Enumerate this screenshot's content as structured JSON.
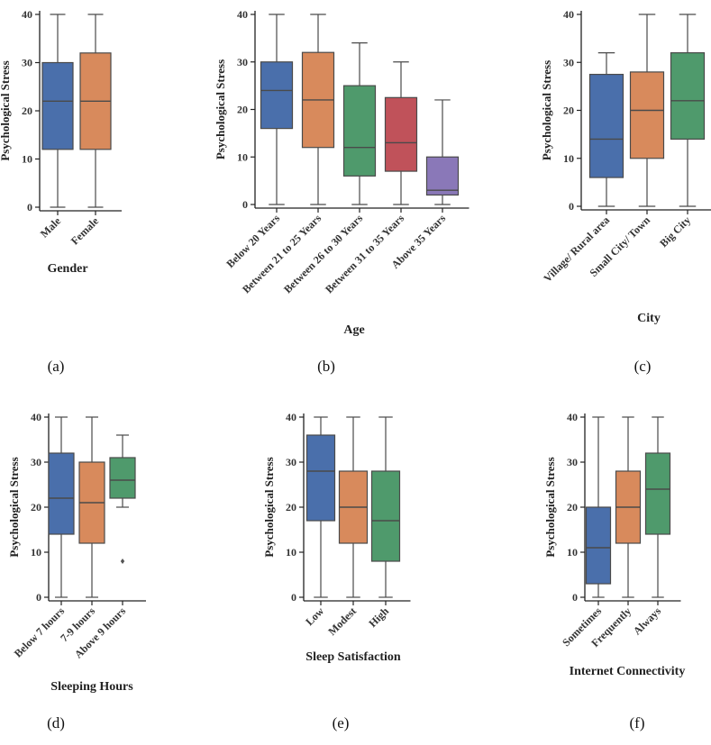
{
  "figure_labels": [
    "(a)",
    "(b)",
    "(c)",
    "(d)",
    "(e)",
    "(f)"
  ],
  "colors": {
    "blue": "#4a6fab",
    "orange": "#d88a5c",
    "green": "#4f9a6c",
    "red": "#c0525a",
    "purple": "#8a78b8",
    "line": "#4a4a4a",
    "axis": "#222222"
  },
  "chart_data": [
    {
      "type": "box",
      "title": "",
      "xlabel": "Gender",
      "ylabel": "Psychological Stress",
      "ylim": [
        0,
        40
      ],
      "yticks": [
        "0",
        "10",
        "20",
        "30",
        "40"
      ],
      "categories": [
        "Male",
        "Female"
      ],
      "boxes": [
        {
          "min": 0,
          "q1": 12,
          "median": 22,
          "q3": 30,
          "max": 40,
          "color": "#4a6fab",
          "outliers": []
        },
        {
          "min": 0,
          "q1": 12,
          "median": 22,
          "q3": 32,
          "max": 40,
          "color": "#d88a5c",
          "outliers": []
        }
      ]
    },
    {
      "type": "box",
      "title": "",
      "xlabel": "Age",
      "ylabel": "Psychological Stress",
      "ylim": [
        0,
        40
      ],
      "yticks": [
        "0",
        "10",
        "20",
        "30",
        "40"
      ],
      "categories": [
        "Below 20 Years",
        "Between 21 to 25 Years",
        "Between 26 to 30 Years",
        "Between 31 to 35 Years",
        "Above 35 Years"
      ],
      "boxes": [
        {
          "min": 0,
          "q1": 16,
          "median": 24,
          "q3": 30,
          "max": 40,
          "color": "#4a6fab",
          "outliers": []
        },
        {
          "min": 0,
          "q1": 12,
          "median": 22,
          "q3": 32,
          "max": 40,
          "color": "#d88a5c",
          "outliers": []
        },
        {
          "min": 0,
          "q1": 6,
          "median": 12,
          "q3": 25,
          "max": 34,
          "color": "#4f9a6c",
          "outliers": []
        },
        {
          "min": 0,
          "q1": 7,
          "median": 13,
          "q3": 22.5,
          "max": 30,
          "color": "#c0525a",
          "outliers": []
        },
        {
          "min": 0,
          "q1": 2,
          "median": 3,
          "q3": 10,
          "max": 22,
          "color": "#8a78b8",
          "outliers": []
        }
      ]
    },
    {
      "type": "box",
      "title": "",
      "xlabel": "City",
      "ylabel": "Psychological Stress",
      "ylim": [
        0,
        40
      ],
      "yticks": [
        "0",
        "10",
        "20",
        "30",
        "40"
      ],
      "categories": [
        "Village/ Rural area",
        "Small City/ Town",
        "Big City"
      ],
      "boxes": [
        {
          "min": 0,
          "q1": 6,
          "median": 14,
          "q3": 27.5,
          "max": 32,
          "color": "#4a6fab",
          "outliers": []
        },
        {
          "min": 0,
          "q1": 10,
          "median": 20,
          "q3": 28,
          "max": 40,
          "color": "#d88a5c",
          "outliers": []
        },
        {
          "min": 0,
          "q1": 14,
          "median": 22,
          "q3": 32,
          "max": 40,
          "color": "#4f9a6c",
          "outliers": []
        }
      ]
    },
    {
      "type": "box",
      "title": "",
      "xlabel": "Sleeping Hours",
      "ylabel": "Psychological Stress",
      "ylim": [
        0,
        40
      ],
      "yticks": [
        "0",
        "10",
        "20",
        "30",
        "40"
      ],
      "categories": [
        "Below 7 hours",
        "7-9 hours",
        "Above 9 hours"
      ],
      "boxes": [
        {
          "min": 0,
          "q1": 14,
          "median": 22,
          "q3": 32,
          "max": 40,
          "color": "#4a6fab",
          "outliers": []
        },
        {
          "min": 0,
          "q1": 12,
          "median": 21,
          "q3": 30,
          "max": 40,
          "color": "#d88a5c",
          "outliers": []
        },
        {
          "min": 20,
          "q1": 22,
          "median": 26,
          "q3": 31,
          "max": 36,
          "color": "#4f9a6c",
          "outliers": [
            8
          ]
        }
      ]
    },
    {
      "type": "box",
      "title": "",
      "xlabel": "Sleep Satisfaction",
      "ylabel": "Psychological Stress",
      "ylim": [
        0,
        40
      ],
      "yticks": [
        "0",
        "10",
        "20",
        "30",
        "40"
      ],
      "categories": [
        "Low",
        "Modest",
        "High"
      ],
      "boxes": [
        {
          "min": 0,
          "q1": 17,
          "median": 28,
          "q3": 36,
          "max": 40,
          "color": "#4a6fab",
          "outliers": []
        },
        {
          "min": 0,
          "q1": 12,
          "median": 20,
          "q3": 28,
          "max": 40,
          "color": "#d88a5c",
          "outliers": []
        },
        {
          "min": 0,
          "q1": 8,
          "median": 17,
          "q3": 28,
          "max": 40,
          "color": "#4f9a6c",
          "outliers": []
        }
      ]
    },
    {
      "type": "box",
      "title": "",
      "xlabel": "Internet Connectivity",
      "ylabel": "Psychological Stress",
      "ylim": [
        0,
        40
      ],
      "yticks": [
        "0",
        "10",
        "20",
        "30",
        "40"
      ],
      "categories": [
        "Sometimes",
        "Frequently",
        "Always"
      ],
      "boxes": [
        {
          "min": 0,
          "q1": 3,
          "median": 11,
          "q3": 20,
          "max": 40,
          "color": "#4a6fab",
          "outliers": []
        },
        {
          "min": 0,
          "q1": 12,
          "median": 20,
          "q3": 28,
          "max": 40,
          "color": "#d88a5c",
          "outliers": []
        },
        {
          "min": 0,
          "q1": 14,
          "median": 24,
          "q3": 32,
          "max": 40,
          "color": "#4f9a6c",
          "outliers": []
        }
      ]
    }
  ]
}
